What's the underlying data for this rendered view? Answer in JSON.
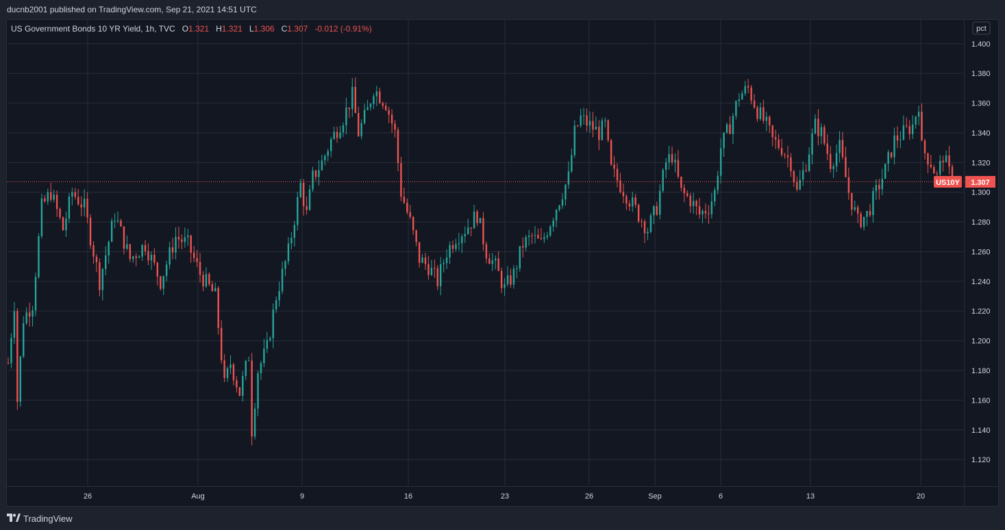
{
  "header": {
    "publisher": "ducnb2001 published on TradingView.com, Sep 21, 2021 14:51 UTC"
  },
  "legend": {
    "title": "US Government Bonds 10 YR Yield, 1h, TVC",
    "o_label": "O",
    "o_value": "1.321",
    "h_label": "H",
    "h_value": "1.321",
    "l_label": "L",
    "l_value": "1.306",
    "c_label": "C",
    "c_value": "1.307",
    "change": "-0.012 (-0.91%)"
  },
  "axis": {
    "unit": "pct",
    "symbol_tag": "US10Y",
    "last_price": "1.307"
  },
  "brand": {
    "name": "TradingView"
  },
  "colors": {
    "up": "#26a69a",
    "down": "#ef5350",
    "grid": "#2a2e39",
    "text": "#d1d4dc"
  },
  "chart_data": {
    "type": "candlestick",
    "title": "US Government Bonds 10 YR Yield, 1h, TVC",
    "ylabel": "pct",
    "ylim": [
      1.103,
      1.411
    ],
    "y_ticks": [
      "1.120",
      "1.140",
      "1.160",
      "1.180",
      "1.200",
      "1.220",
      "1.240",
      "1.260",
      "1.280",
      "1.300",
      "1.320",
      "1.340",
      "1.360",
      "1.380",
      "1.400"
    ],
    "x_ticks": [
      "26",
      "Aug",
      "9",
      "16",
      "23",
      "26",
      "Sep",
      "6",
      "13",
      "20"
    ],
    "last_value": 1.307,
    "series": [
      {
        "name": "US10Y",
        "close_path": [
          [
            0,
            1.185
          ],
          [
            2,
            1.225
          ],
          [
            3,
            1.16
          ],
          [
            5,
            1.215
          ],
          [
            8,
            1.225
          ],
          [
            11,
            1.29
          ],
          [
            14,
            1.3
          ],
          [
            18,
            1.275
          ],
          [
            21,
            1.3
          ],
          [
            25,
            1.29
          ],
          [
            30,
            1.24
          ],
          [
            35,
            1.285
          ],
          [
            40,
            1.255
          ],
          [
            45,
            1.265
          ],
          [
            50,
            1.24
          ],
          [
            55,
            1.27
          ],
          [
            59,
            1.265
          ],
          [
            63,
            1.245
          ],
          [
            68,
            1.23
          ],
          [
            71,
            1.17
          ],
          [
            73,
            1.185
          ],
          [
            76,
            1.165
          ],
          [
            79,
            1.19
          ],
          [
            80,
            1.14
          ],
          [
            82,
            1.18
          ],
          [
            85,
            1.195
          ],
          [
            88,
            1.23
          ],
          [
            92,
            1.26
          ],
          [
            96,
            1.305
          ],
          [
            98,
            1.285
          ],
          [
            100,
            1.31
          ],
          [
            103,
            1.32
          ],
          [
            106,
            1.335
          ],
          [
            110,
            1.35
          ],
          [
            113,
            1.365
          ],
          [
            115,
            1.34
          ],
          [
            118,
            1.355
          ],
          [
            120,
            1.37
          ],
          [
            124,
            1.36
          ],
          [
            127,
            1.34
          ],
          [
            129,
            1.3
          ],
          [
            132,
            1.28
          ],
          [
            135,
            1.255
          ],
          [
            138,
            1.25
          ],
          [
            141,
            1.24
          ],
          [
            144,
            1.26
          ],
          [
            147,
            1.27
          ],
          [
            150,
            1.275
          ],
          [
            154,
            1.285
          ],
          [
            157,
            1.26
          ],
          [
            160,
            1.25
          ],
          [
            163,
            1.235
          ],
          [
            166,
            1.245
          ],
          [
            169,
            1.265
          ],
          [
            172,
            1.27
          ],
          [
            175,
            1.265
          ],
          [
            178,
            1.28
          ],
          [
            181,
            1.295
          ],
          [
            184,
            1.31
          ],
          [
            186,
            1.34
          ],
          [
            188,
            1.35
          ],
          [
            191,
            1.345
          ],
          [
            194,
            1.34
          ],
          [
            196,
            1.345
          ],
          [
            198,
            1.315
          ],
          [
            201,
            1.305
          ],
          [
            204,
            1.295
          ],
          [
            207,
            1.285
          ],
          [
            210,
            1.275
          ],
          [
            213,
            1.29
          ],
          [
            216,
            1.32
          ],
          [
            218,
            1.325
          ],
          [
            221,
            1.3
          ],
          [
            224,
            1.295
          ],
          [
            227,
            1.285
          ],
          [
            230,
            1.29
          ],
          [
            232,
            1.3
          ],
          [
            234,
            1.33
          ],
          [
            237,
            1.345
          ],
          [
            240,
            1.365
          ],
          [
            243,
            1.37
          ],
          [
            246,
            1.355
          ],
          [
            249,
            1.345
          ],
          [
            251,
            1.335
          ],
          [
            254,
            1.33
          ],
          [
            257,
            1.32
          ],
          [
            259,
            1.3
          ],
          [
            262,
            1.32
          ],
          [
            265,
            1.345
          ],
          [
            267,
            1.34
          ],
          [
            270,
            1.32
          ],
          [
            273,
            1.33
          ],
          [
            276,
            1.3
          ],
          [
            279,
            1.28
          ],
          [
            282,
            1.285
          ],
          [
            285,
            1.3
          ],
          [
            288,
            1.315
          ],
          [
            291,
            1.335
          ],
          [
            294,
            1.34
          ],
          [
            297,
            1.345
          ],
          [
            299,
            1.36
          ],
          [
            300,
            1.33
          ],
          [
            303,
            1.32
          ],
          [
            305,
            1.31
          ],
          [
            307,
            1.325
          ],
          [
            310,
            1.307
          ]
        ]
      }
    ]
  }
}
